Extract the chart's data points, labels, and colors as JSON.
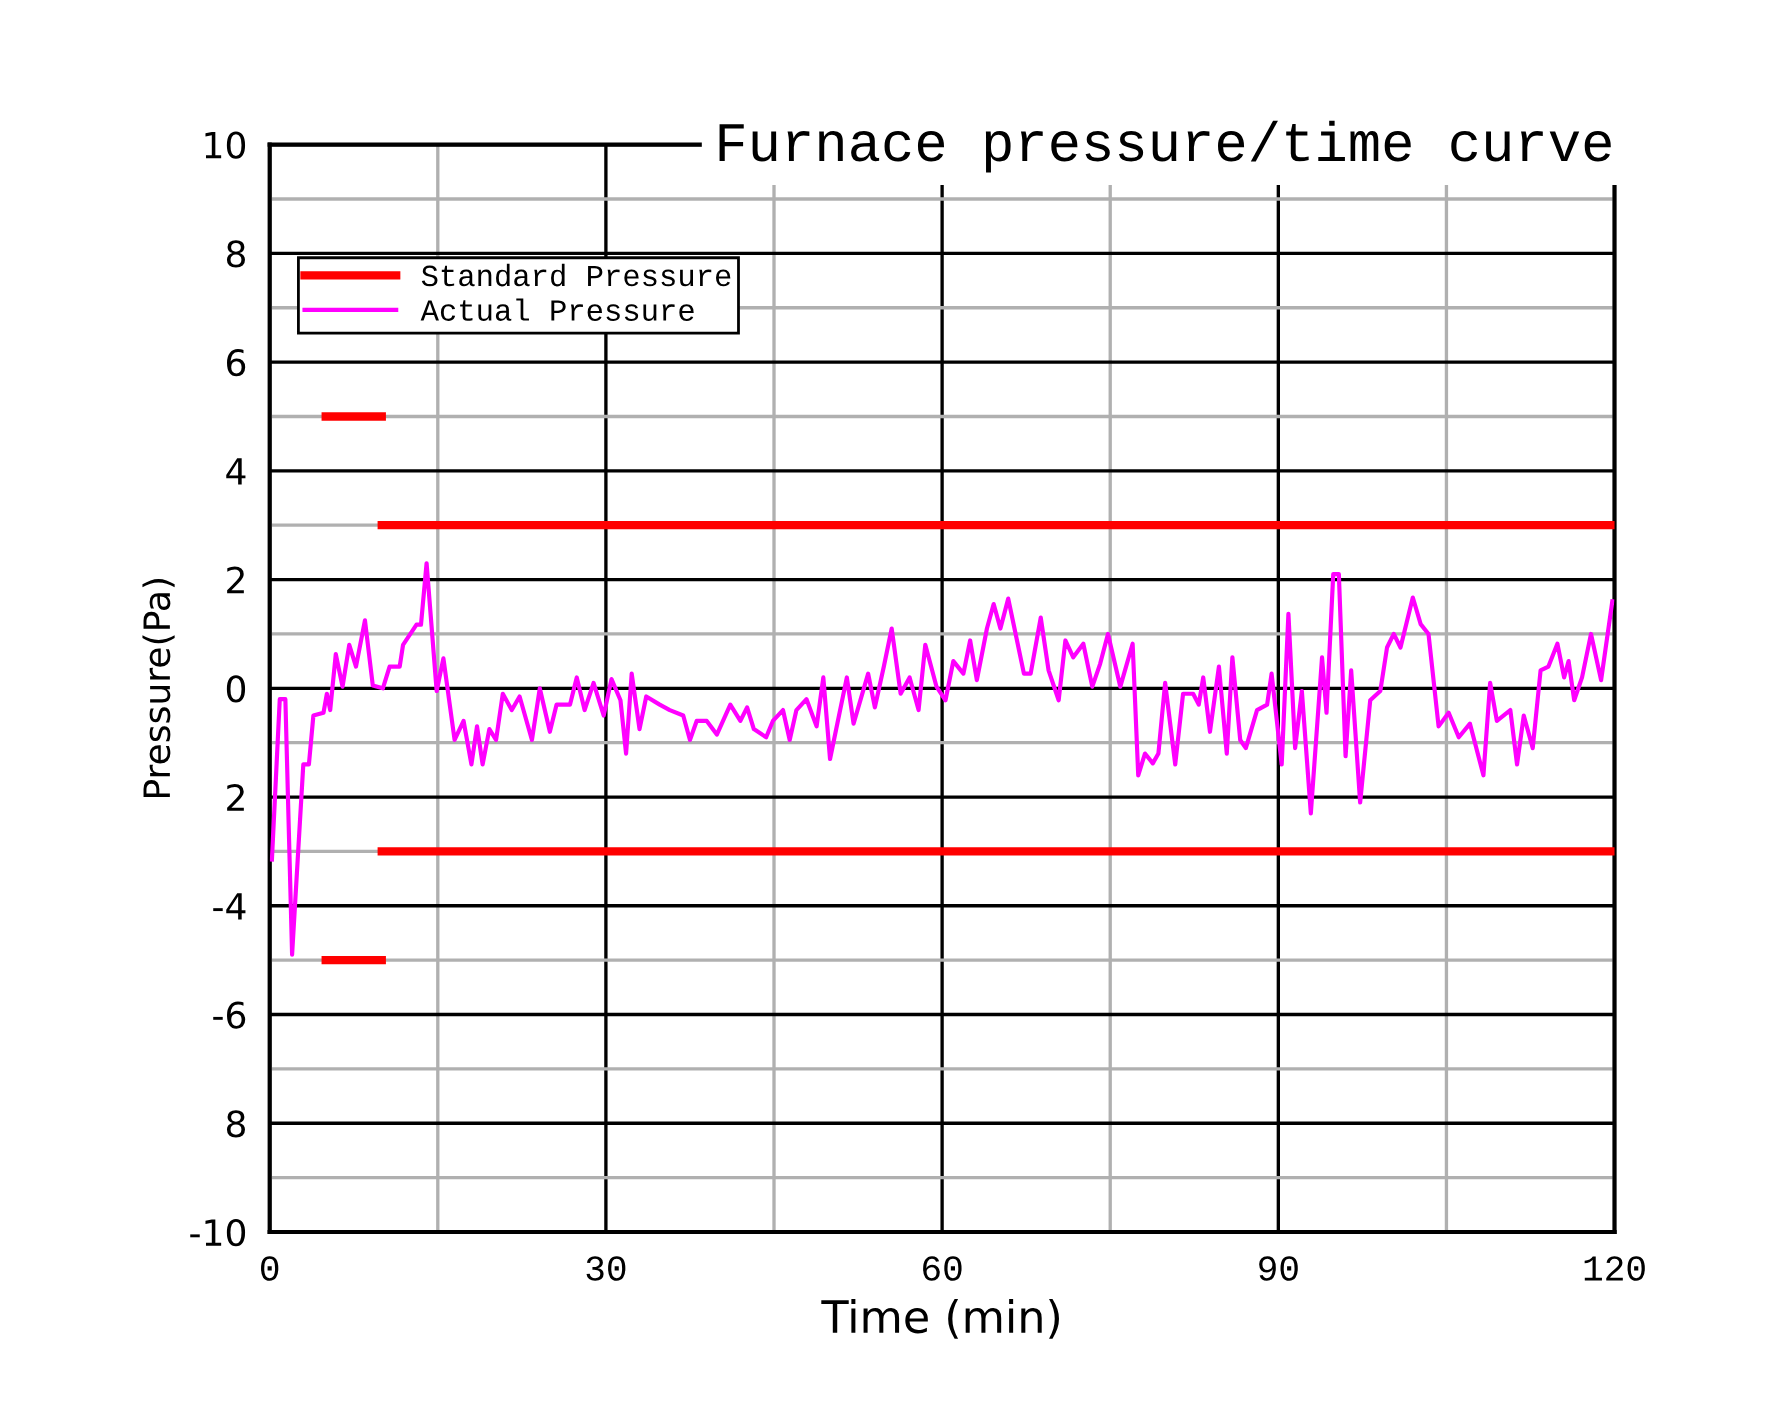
{
  "chart_data": {
    "type": "line",
    "title": "Furnace pressure/time curve",
    "xlabel": "Time (min)",
    "ylabel": "Pressure(Pa)",
    "xlim": [
      0,
      120
    ],
    "ylim": [
      -10,
      10
    ],
    "xticks": [
      0,
      {
        "value": 15,
        "label": null
      },
      30,
      {
        "value": 45,
        "label": null
      },
      60,
      {
        "value": 75,
        "label": null
      },
      90,
      {
        "value": 105,
        "label": null
      },
      120
    ],
    "yticks": [
      -10,
      {
        "value": -9,
        "label": null
      },
      {
        "value": -8,
        "label": "8"
      },
      {
        "value": -7,
        "label": null
      },
      -6,
      {
        "value": -5,
        "label": null
      },
      -4,
      {
        "value": -3,
        "label": null
      },
      {
        "value": -2,
        "label": "2"
      },
      {
        "value": -1,
        "label": null
      },
      0,
      {
        "value": 1,
        "label": null
      },
      2,
      {
        "value": 3,
        "label": null
      },
      4,
      {
        "value": 5,
        "label": null
      },
      6,
      {
        "value": 7,
        "label": null
      },
      8,
      {
        "value": 9,
        "label": null
      },
      10
    ],
    "grid": true,
    "legend": "top left",
    "marker": "none",
    "line_style": "solid",
    "series": [
      {
        "name": "Standard Pressure",
        "color": "#ff0000",
        "x": [
          10,
          120
        ],
        "values": [
          3,
          3
        ]
      },
      {
        "color": "#ff0000",
        "x": [
          5,
          10
        ],
        "values": [
          5,
          5
        ]
      },
      {
        "color": "#ff0000",
        "x": [
          10,
          120
        ],
        "values": [
          -3,
          -3
        ]
      },
      {
        "color": "#ff0000",
        "x": [
          5,
          10
        ],
        "values": [
          -5,
          -5
        ]
      },
      {
        "name": "Actual Pressure",
        "color": "#ff00ff",
        "x": [
          0.2,
          0.9,
          1.4,
          2,
          3,
          3.5,
          3.9,
          4.8,
          5.1,
          5.4,
          5.9,
          6.5,
          7.1,
          7.7,
          8.5,
          9.2,
          10.1,
          10.7,
          11.6,
          11.9,
          13.1,
          13.5,
          14,
          14.9,
          15.5,
          16.5,
          17.3,
          18,
          18.5,
          19,
          19.6,
          20.2,
          20.8,
          21.6,
          22.3,
          23.4,
          24.1,
          25,
          25.6,
          26.8,
          27.4,
          28.1,
          28.9,
          29.8,
          30.5,
          31.3,
          31.8,
          32.3,
          33,
          33.6,
          34.8,
          35.7,
          36.9,
          37.5,
          38.1,
          39,
          39.9,
          41.1,
          42,
          42.6,
          43.2,
          44.3,
          44.9,
          45.8,
          46.4,
          47,
          47.9,
          48.8,
          49.4,
          50,
          51.5,
          52.1,
          53.4,
          54,
          54.8,
          55.5,
          56.3,
          57.1,
          57.9,
          58.5,
          59.5,
          60.3,
          61,
          61.9,
          62.5,
          63.1,
          64,
          64.6,
          65.2,
          65.9,
          67.3,
          67.9,
          68.8,
          69.5,
          70.4,
          71,
          71.7,
          72.6,
          73.4,
          74.1,
          74.8,
          75.9,
          77,
          77.5,
          78.1,
          78.8,
          79.3,
          79.9,
          80.8,
          81.5,
          82.4,
          82.9,
          83.3,
          83.9,
          84.7,
          85.4,
          85.9,
          86.6,
          87.1,
          88.1,
          89,
          89.4,
          90.3,
          90.9,
          91.5,
          92.1,
          92.9,
          93.9,
          94.3,
          94.9,
          95.4,
          96,
          96.5,
          97.3,
          98.2,
          99.1,
          99.7,
          100.3,
          100.9,
          102,
          102.7,
          103.4,
          104.3,
          105.2,
          106.1,
          107.1,
          108.3,
          108.9,
          109.5,
          110.7,
          111.3,
          111.9,
          112.7,
          113.4,
          114.1,
          114.9,
          115.5,
          115.9,
          116.4,
          117.1,
          117.9,
          118.8,
          119.8
        ],
        "values": [
          -3.15,
          -0.2,
          -0.2,
          -4.9,
          -1.4,
          -1.4,
          -0.5,
          -0.45,
          -0.1,
          -0.4,
          0.63,
          0.03,
          0.8,
          0.4,
          1.25,
          0.05,
          0,
          0.4,
          0.4,
          0.8,
          1.17,
          1.17,
          2.3,
          -0.05,
          0.55,
          -0.95,
          -0.6,
          -1.4,
          -0.7,
          -1.4,
          -0.75,
          -0.95,
          -0.1,
          -0.4,
          -0.15,
          -0.95,
          0,
          -0.8,
          -0.3,
          -0.3,
          0.2,
          -0.4,
          0.1,
          -0.5,
          0.17,
          -0.22,
          -1.2,
          0.27,
          -0.75,
          -0.15,
          -0.3,
          -0.4,
          -0.5,
          -0.95,
          -0.6,
          -0.6,
          -0.85,
          -0.3,
          -0.6,
          -0.35,
          -0.75,
          -0.9,
          -0.6,
          -0.4,
          -0.95,
          -0.4,
          -0.2,
          -0.7,
          0.2,
          -1.3,
          0.2,
          -0.65,
          0.27,
          -0.35,
          0.4,
          1.1,
          -0.1,
          0.2,
          -0.4,
          0.8,
          0.03,
          -0.22,
          0.5,
          0.27,
          0.88,
          0.15,
          1.1,
          1.55,
          1.1,
          1.65,
          0.27,
          0.27,
          1.3,
          0.33,
          -0.22,
          0.88,
          0.57,
          0.82,
          0.03,
          0.45,
          1.0,
          0.03,
          0.82,
          -1.6,
          -1.2,
          -1.38,
          -1.2,
          0.1,
          -1.4,
          -0.1,
          -0.1,
          -0.3,
          0.2,
          -0.8,
          0.4,
          -1.2,
          0.57,
          -0.95,
          -1.1,
          -0.4,
          -0.3,
          0.27,
          -1.4,
          1.37,
          -1.1,
          -0.05,
          -2.3,
          0.57,
          -0.45,
          2.1,
          2.1,
          -1.25,
          0.33,
          -2.1,
          -0.22,
          -0.05,
          0.75,
          1.0,
          0.75,
          1.67,
          1.18,
          1.0,
          -0.7,
          -0.45,
          -0.9,
          -0.65,
          -1.6,
          0.1,
          -0.6,
          -0.4,
          -1.4,
          -0.5,
          -1.1,
          0.33,
          0.4,
          0.82,
          0.2,
          0.5,
          -0.22,
          0.2,
          1.0,
          0.15,
          1.6
        ]
      }
    ]
  }
}
